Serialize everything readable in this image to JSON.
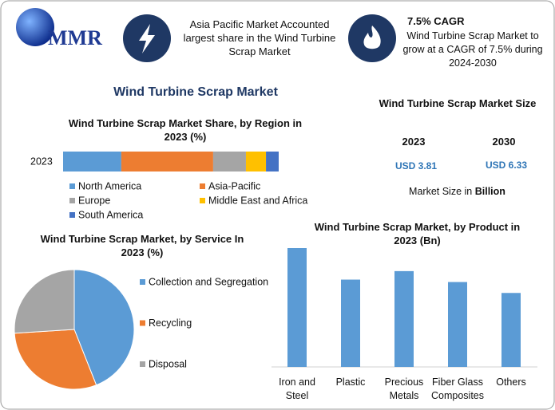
{
  "header": {
    "logo": "MMR",
    "highlight_1": "Asia Pacific Market Accounted largest share in the Wind Turbine Scrap Market",
    "highlight_2_title": "7.5% CAGR",
    "highlight_2": "Wind Turbine Scrap Market to grow at a CAGR of 7.5% during 2024-2030"
  },
  "title": "Wind Turbine Scrap Market",
  "market_size": {
    "title": "Wind Turbine Scrap Market Size",
    "years": [
      "2023",
      "2030"
    ],
    "values": [
      "USD 3.81",
      "USD 6.33"
    ],
    "note_prefix": "Market Size in",
    "note_unit": "Billion"
  },
  "chart_data": [
    {
      "type": "stacked-bar",
      "title": "Wind Turbine Scrap Market Share, by Region in 2023 (%)",
      "categories": [
        "2023"
      ],
      "series": [
        {
          "name": "North America",
          "color": "#5b9bd5",
          "values": [
            27
          ]
        },
        {
          "name": "Asia-Pacific",
          "color": "#ed7d31",
          "values": [
            42.6
          ]
        },
        {
          "name": "Europe",
          "color": "#a5a5a5",
          "values": [
            15.2
          ]
        },
        {
          "name": "Middle East and Africa",
          "color": "#ffc000",
          "values": [
            9.3
          ]
        },
        {
          "name": "South America",
          "color": "#4472c4",
          "values": [
            5.9
          ]
        }
      ]
    },
    {
      "type": "pie",
      "title": "Wind Turbine Scrap Market, by Service In 2023 (%)",
      "categories": [
        "Collection and Segregation",
        "Recycling",
        "Disposal"
      ],
      "values": [
        44,
        30,
        26
      ],
      "colors": [
        "#5b9bd5",
        "#ed7d31",
        "#a5a5a5"
      ]
    },
    {
      "type": "bar",
      "title": "Wind Turbine Scrap Market, by Product in 2023 (Bn)",
      "categories": [
        "Iron and Steel",
        "Plastic",
        "Precious Metals",
        "Fiber Glass Composites",
        "Others"
      ],
      "values": [
        0.98,
        0.72,
        0.79,
        0.7,
        0.61
      ],
      "color": "#5b9bd5"
    }
  ]
}
